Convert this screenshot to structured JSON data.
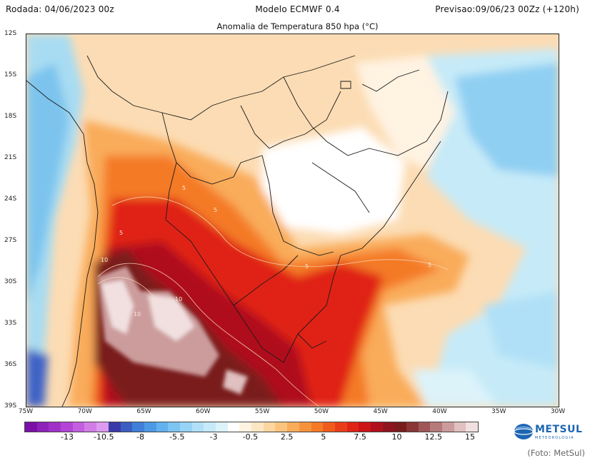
{
  "header": {
    "left": "Rodada: 04/06/2023 00z",
    "center": "Modelo ECMWF 0.4",
    "right": "Previsao:09/06/23 00Zz (+120h)"
  },
  "subtitle": "Anomalia de Temperatura 850 hpa (°C)",
  "latitudes": [
    "12S",
    "15S",
    "18S",
    "21S",
    "24S",
    "27S",
    "30S",
    "33S",
    "36S",
    "39S"
  ],
  "longitudes": [
    "75W",
    "70W",
    "65W",
    "60W",
    "55W",
    "50W",
    "45W",
    "40W",
    "35W",
    "30W"
  ],
  "contour_labels": [
    "5",
    "5",
    "5",
    "5",
    "5",
    "10",
    "10",
    "10"
  ],
  "colorbar": {
    "ticks": [
      "-13",
      "-10.5",
      "-8",
      "-5.5",
      "-3",
      "-0.5",
      "2.5",
      "5",
      "7.5",
      "10",
      "12.5",
      "15"
    ],
    "colors": [
      "#7a10a8",
      "#8e22b8",
      "#a030c8",
      "#b444d6",
      "#c45ee0",
      "#d27ce8",
      "#dd9aee",
      "#3a3aa8",
      "#3c5dc2",
      "#3f7fd8",
      "#4c9ae6",
      "#63b2ee",
      "#7cc4f2",
      "#96d3f5",
      "#b0e0f7",
      "#c6eaf8",
      "#dcf3fa",
      "#ffffff",
      "#fff3e2",
      "#fde6c4",
      "#fcd6a0",
      "#fbc47c",
      "#f9ac5a",
      "#f7923c",
      "#f47a28",
      "#f05c1e",
      "#ea3e1a",
      "#e02416",
      "#cc1418",
      "#b0101c",
      "#8e1420",
      "#7a1c1c",
      "#8a3636",
      "#a05656",
      "#b67a7a",
      "#cc9c9c",
      "#e0c0c0",
      "#f2e0e0"
    ]
  },
  "brand": {
    "name": "METSUL",
    "sub": "METEOROLOGIA"
  },
  "credit": "(Foto: MetSul)"
}
